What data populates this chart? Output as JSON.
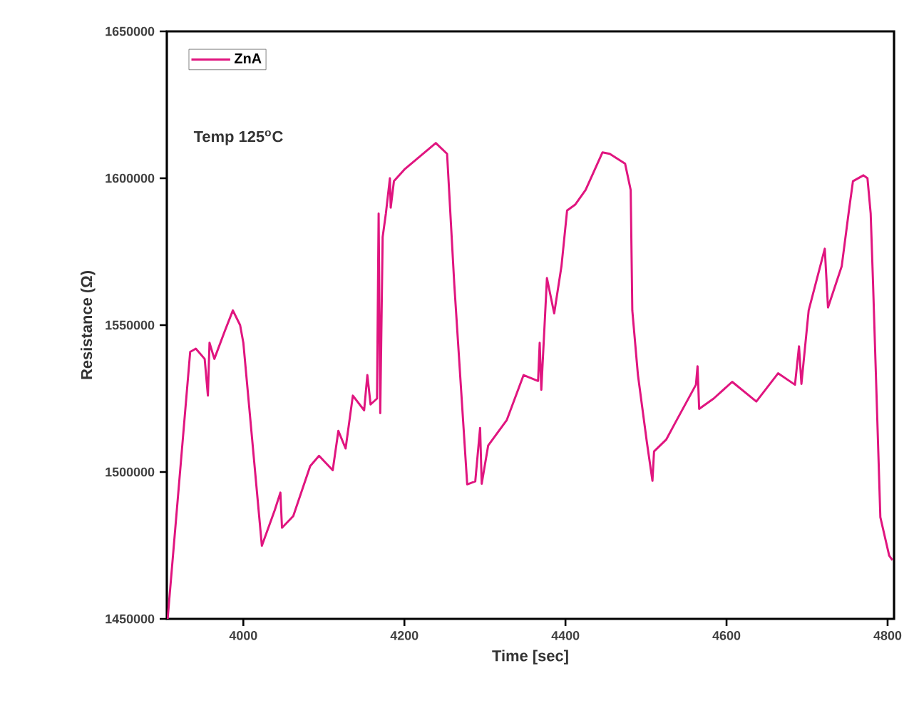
{
  "chart_data": {
    "type": "line",
    "xlabel": "Time [sec]",
    "ylabel": "Resistance (Ω)",
    "annotations": [
      "Temp 125$^{o}$C"
    ],
    "legend": "top left",
    "grid": false,
    "xlim": [
      3905,
      4808
    ],
    "ylim": [
      1450000,
      1650000
    ],
    "xticks": [
      4000,
      4200,
      4400,
      4600,
      4800
    ],
    "yticks": [
      1450000,
      1500000,
      1550000,
      1600000,
      1650000
    ],
    "series": [
      {
        "name": "ZnA",
        "color": "#e0157f",
        "x": [
          3906,
          3934,
          3941,
          3952,
          3956,
          3958,
          3964,
          3977,
          3987,
          3996,
          4000,
          4023,
          4039,
          4046,
          4048,
          4062,
          4083,
          4094,
          4111,
          4118,
          4127,
          4136,
          4150,
          4154,
          4158,
          4166,
          4168,
          4170,
          4173,
          4177,
          4182,
          4183,
          4187,
          4200,
          4239,
          4253,
          4262,
          4278,
          4288,
          4294,
          4296,
          4304,
          4327,
          4348,
          4366,
          4368,
          4370,
          4377,
          4386,
          4395,
          4402,
          4412,
          4425,
          4446,
          4455,
          4474,
          4481,
          4483,
          4490,
          4501,
          4508,
          4510,
          4525,
          4536,
          4562,
          4564,
          4566,
          4584,
          4607,
          4637,
          4664,
          4685,
          4690,
          4693,
          4702,
          4722,
          4726,
          4743,
          4752,
          4757,
          4770,
          4775,
          4779,
          4782,
          4791,
          4802,
          4806
        ],
        "values": [
          1450000,
          1540900,
          1542000,
          1538500,
          1526000,
          1544000,
          1538500,
          1548000,
          1555000,
          1550000,
          1544000,
          1474900,
          1487000,
          1493000,
          1481000,
          1485000,
          1502000,
          1505500,
          1500600,
          1514000,
          1508000,
          1526000,
          1521000,
          1533000,
          1523000,
          1525000,
          1588000,
          1520000,
          1580000,
          1588000,
          1600000,
          1590000,
          1599000,
          1603000,
          1612000,
          1608300,
          1563700,
          1495800,
          1496800,
          1515000,
          1496000,
          1509000,
          1517600,
          1533000,
          1531000,
          1544000,
          1528000,
          1566000,
          1554000,
          1570000,
          1589000,
          1591000,
          1596000,
          1608800,
          1608300,
          1605000,
          1596000,
          1555000,
          1533000,
          1510300,
          1497000,
          1507000,
          1511000,
          1516600,
          1529700,
          1536000,
          1521500,
          1525000,
          1530700,
          1524000,
          1533600,
          1529700,
          1542800,
          1530000,
          1555000,
          1576000,
          1556000,
          1570000,
          1589000,
          1599000,
          1601000,
          1600000,
          1588000,
          1563700,
          1484600,
          1471500,
          1470000
        ]
      }
    ]
  }
}
